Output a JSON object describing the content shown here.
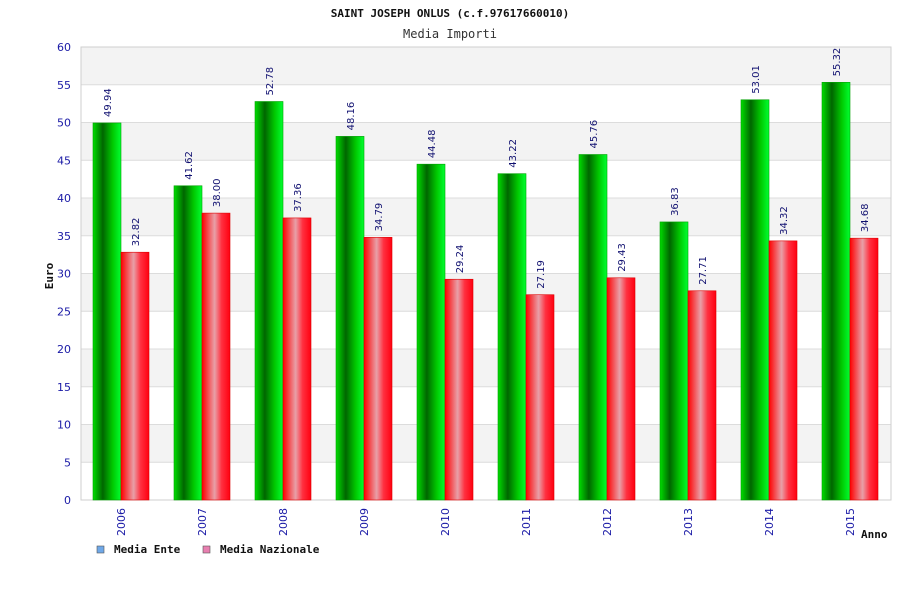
{
  "chart_data": {
    "type": "bar",
    "title": "SAINT JOSEPH ONLUS (c.f.97617660010)",
    "subtitle": "Media Importi",
    "xlabel": "Anno",
    "ylabel": "Euro",
    "ylim": [
      0,
      60
    ],
    "yticks": [
      0,
      5,
      10,
      15,
      20,
      25,
      30,
      35,
      40,
      45,
      50,
      55,
      60
    ],
    "categories": [
      "2006",
      "2007",
      "2008",
      "2009",
      "2010",
      "2011",
      "2012",
      "2013",
      "2014",
      "2015"
    ],
    "series": [
      {
        "name": "Media Ente",
        "color": "#00c000",
        "legend_color": "#6fa8e8",
        "values": [
          49.94,
          41.62,
          52.78,
          48.16,
          44.48,
          43.22,
          45.76,
          36.83,
          53.01,
          55.32
        ],
        "labels": [
          "49.94",
          "41.62",
          "52.78",
          "48.16",
          "44.48",
          "43.22",
          "45.76",
          "36.83",
          "53.01",
          "55.32"
        ]
      },
      {
        "name": "Media Nazionale",
        "color": "#ff1a1a",
        "legend_color": "#e87fb0",
        "values": [
          32.82,
          38.0,
          37.36,
          34.79,
          29.24,
          27.19,
          29.43,
          27.71,
          34.32,
          34.68
        ],
        "labels": [
          "32.82",
          "38.00",
          "37.36",
          "34.79",
          "29.24",
          "27.19",
          "29.43",
          "27.71",
          "34.32",
          "34.68"
        ]
      }
    ],
    "grid": true,
    "legend": "bottom-left"
  }
}
